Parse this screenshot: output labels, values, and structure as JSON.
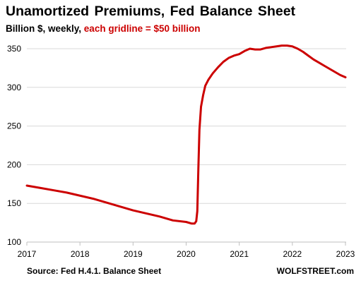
{
  "header": {
    "title": "Unamortized  Premiums,  Fed Balance Sheet",
    "subtitle_black": "Billion $, weekly, ",
    "subtitle_red": "each gridline = $50 billion"
  },
  "footer": {
    "source": "Source: Fed H.4.1. Balance Sheet",
    "brand": "WOLFSTREET.com"
  },
  "colors": {
    "line": "#cc0000",
    "grid": "#d9d9d9",
    "axis": "#bfbfbf",
    "accent_text": "#cc0000"
  },
  "chart_data": {
    "type": "line",
    "title": "Unamortized  Premiums,  Fed Balance Sheet",
    "subtitle": "Billion $, weekly, each gridline = $50 billion",
    "xlabel": "",
    "ylabel": "",
    "xlim": [
      2017,
      2023
    ],
    "ylim": [
      100,
      360
    ],
    "x_ticks": [
      2017,
      2018,
      2019,
      2020,
      2021,
      2022,
      2023
    ],
    "x_tick_labels": [
      "2017",
      "2018",
      "2019",
      "2020",
      "2021",
      "2022",
      "2023"
    ],
    "y_ticks": [
      100,
      150,
      200,
      250,
      300,
      350
    ],
    "y_tick_labels": [
      "100",
      "150",
      "200",
      "250",
      "300",
      "350"
    ],
    "grid": "horizontal",
    "legend": "none",
    "series": [
      {
        "x": [
          2017.0,
          2017.25,
          2017.5,
          2017.75,
          2018.0,
          2018.25,
          2018.5,
          2018.75,
          2019.0,
          2019.25,
          2019.5,
          2019.75,
          2020.0,
          2020.1,
          2020.16,
          2020.19,
          2020.21,
          2020.23,
          2020.25,
          2020.28,
          2020.32,
          2020.36,
          2020.42,
          2020.5,
          2020.6,
          2020.7,
          2020.8,
          2020.9,
          2021.0,
          2021.1,
          2021.2,
          2021.3,
          2021.4,
          2021.5,
          2021.6,
          2021.7,
          2021.8,
          2021.9,
          2022.0,
          2022.1,
          2022.2,
          2022.3,
          2022.4,
          2022.5,
          2022.6,
          2022.7,
          2022.8,
          2022.9,
          2023.0
        ],
        "values": [
          173,
          170,
          167,
          164,
          160,
          156,
          151,
          146,
          141,
          137,
          133,
          128,
          126,
          124,
          124,
          127,
          140,
          195,
          245,
          275,
          290,
          302,
          310,
          318,
          326,
          333,
          338,
          341,
          343,
          347,
          350,
          349,
          349,
          351,
          352,
          353,
          354,
          354,
          353,
          350,
          346,
          341,
          336,
          332,
          328,
          324,
          320,
          316,
          313
        ]
      }
    ]
  }
}
